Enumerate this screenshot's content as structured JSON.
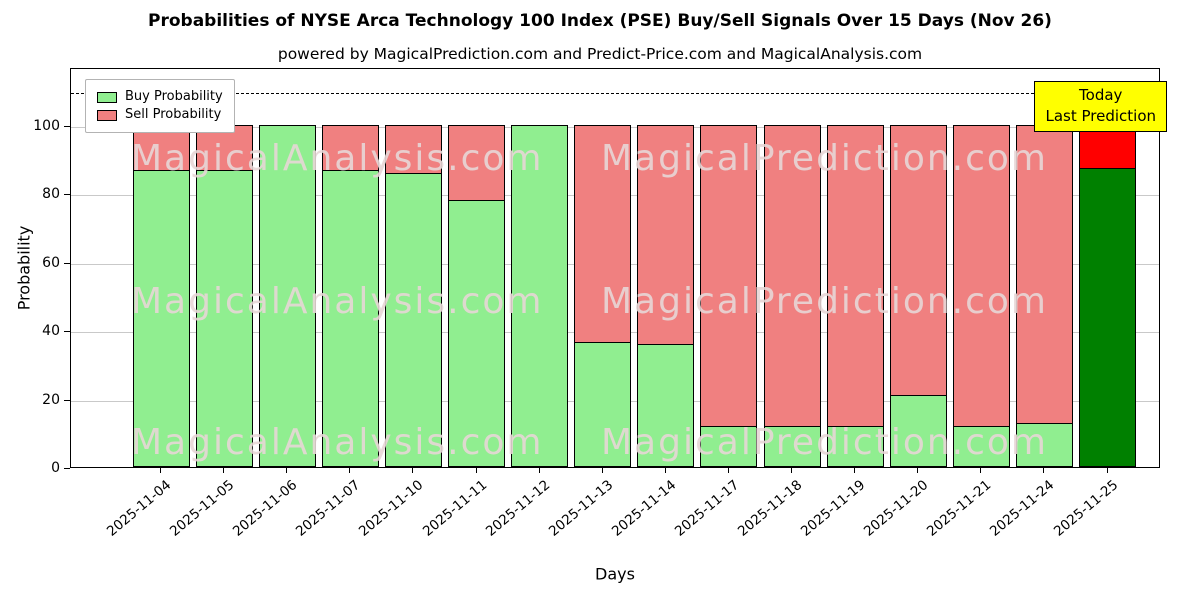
{
  "title": "Probabilities of NYSE Arca Technology 100 Index (PSE) Buy/Sell Signals Over 15 Days (Nov 26)",
  "subtitle": "powered by MagicalPrediction.com and Predict-Price.com and MagicalAnalysis.com",
  "legend": {
    "buy_label": "Buy Probability",
    "sell_label": "Sell Probability"
  },
  "annotation_box": {
    "line1": "Today",
    "line2": "Last Prediction"
  },
  "axes": {
    "ylabel": "Probability",
    "xlabel": "Days",
    "yticks": [
      0,
      20,
      40,
      60,
      80,
      100
    ],
    "ymax": 117,
    "dashed_line_y": 110
  },
  "watermarks": {
    "left_text": "MagicalAnalysis.com",
    "right_text": "MagicalPrediction.com"
  },
  "colors": {
    "buy": "#90ee90",
    "sell": "#f08080",
    "last_buy": "#008000",
    "last_sell": "#ff0000",
    "bar_edge": "#000000",
    "grid": "#c9c9c9",
    "annotation_bg": "#ffff00"
  },
  "chart_data": {
    "type": "bar",
    "stacked": true,
    "title": "Probabilities of NYSE Arca Technology 100 Index (PSE) Buy/Sell Signals Over 15 Days (Nov 26)",
    "xlabel": "Days",
    "ylabel": "Probability",
    "ylim": [
      0,
      117
    ],
    "grid": true,
    "legend_position": "upper-left",
    "dashed_threshold": 110,
    "categories": [
      "2025-11-04",
      "2025-11-05",
      "2025-11-06",
      "2025-11-07",
      "2025-11-10",
      "2025-11-11",
      "2025-11-12",
      "2025-11-13",
      "2025-11-14",
      "2025-11-17",
      "2025-11-18",
      "2025-11-19",
      "2025-11-20",
      "2025-11-21",
      "2025-11-24",
      "2025-11-25"
    ],
    "series": [
      {
        "name": "Buy Probability",
        "values": [
          87,
          87,
          100,
          87,
          86,
          78,
          100,
          36.5,
          36,
          12,
          12,
          12,
          21,
          12,
          13,
          87.5
        ]
      },
      {
        "name": "Sell Probability",
        "values": [
          13,
          13,
          0,
          13,
          14,
          22,
          0,
          63.5,
          64,
          88,
          88,
          88,
          79,
          88,
          87,
          12.5
        ]
      }
    ],
    "note": "Last bar (2025-11-25) highlighted dark green / bright red as Today's prediction"
  }
}
